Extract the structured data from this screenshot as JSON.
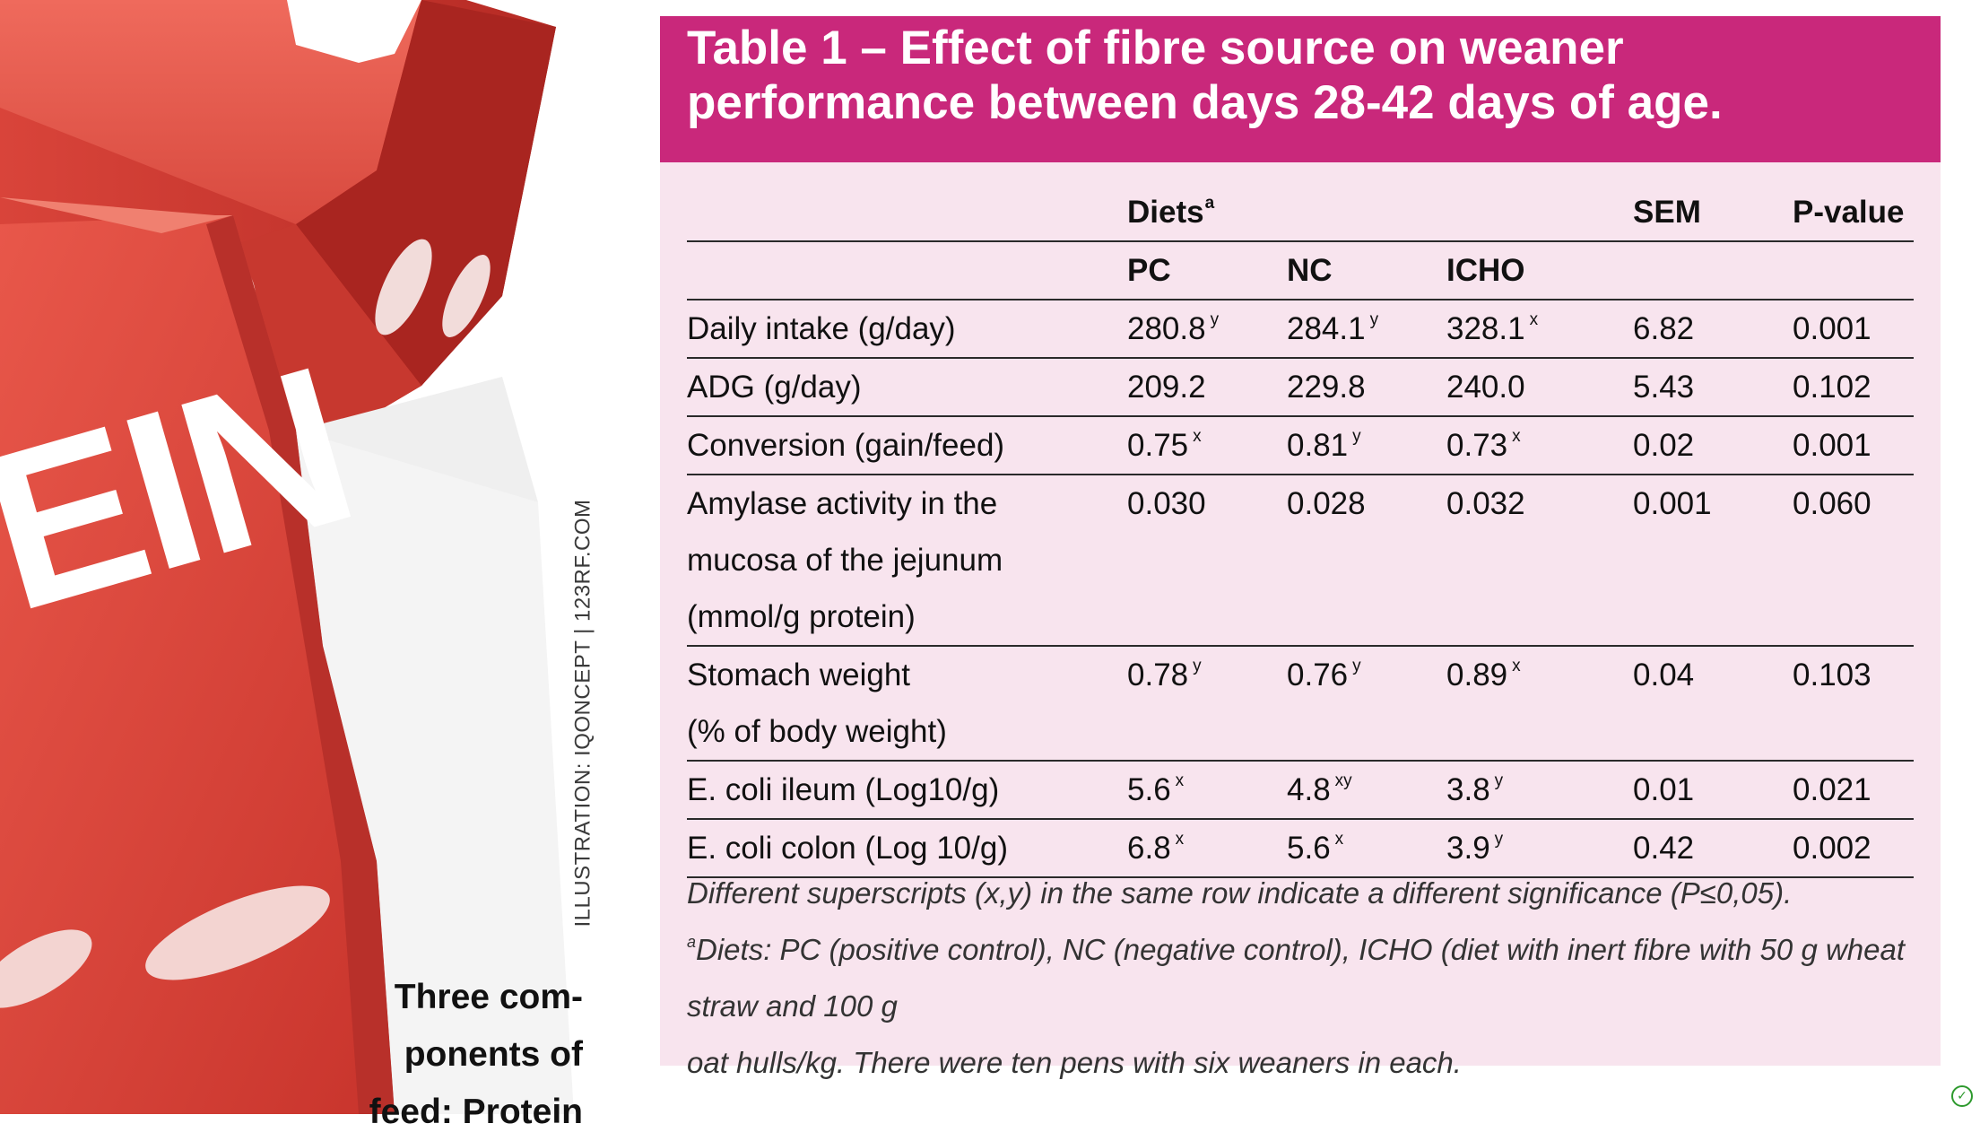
{
  "illustration": {
    "credit": "ILLUSTRATION: IQONCEPT | 123RF.COM",
    "dice_lettering": "EIN"
  },
  "caption": {
    "lines": [
      "Three com-",
      "ponents of",
      "feed: Protein"
    ]
  },
  "table": {
    "title_lines": [
      "Table 1 – Effect of fibre source on weaner",
      "performance between days 28-42 days of age."
    ],
    "header": {
      "diets": "Diets",
      "diets_sup": "a",
      "sem": "SEM",
      "pvalue": "P-value",
      "pc": "PC",
      "nc": "NC",
      "icho": "ICHO"
    },
    "rows": [
      {
        "label": [
          "Daily intake (g/day)"
        ],
        "pc": "280.8",
        "pc_sup": "y",
        "nc": "284.1",
        "nc_sup": "y",
        "icho": "328.1",
        "icho_sup": "x",
        "sem": "6.82",
        "p": "0.001"
      },
      {
        "label": [
          "ADG (g/day)"
        ],
        "pc": "209.2",
        "pc_sup": "",
        "nc": "229.8",
        "nc_sup": "",
        "icho": "240.0",
        "icho_sup": "",
        "sem": "5.43",
        "p": "0.102"
      },
      {
        "label": [
          "Conversion (gain/feed)"
        ],
        "pc": "0.75",
        "pc_sup": "x",
        "nc": "0.81",
        "nc_sup": "y",
        "icho": "0.73",
        "icho_sup": "x",
        "sem": "0.02",
        "p": "0.001"
      },
      {
        "label": [
          "Amylase activity in the",
          "mucosa of the jejunum",
          "(mmol/g protein)"
        ],
        "pc": "0.030",
        "pc_sup": "",
        "nc": "0.028",
        "nc_sup": "",
        "icho": "0.032",
        "icho_sup": "",
        "sem": "0.001",
        "p": "0.060"
      },
      {
        "label": [
          "Stomach weight",
          "(% of body weight)"
        ],
        "pc": "0.78",
        "pc_sup": "y",
        "nc": "0.76",
        "nc_sup": "y",
        "icho": "0.89",
        "icho_sup": "x",
        "sem": "0.04",
        "p": "0.103"
      },
      {
        "label": [
          "E. coli ileum (Log10/g)"
        ],
        "pc": "5.6",
        "pc_sup": "x",
        "nc": "4.8",
        "nc_sup": "xy",
        "icho": "3.8",
        "icho_sup": "y",
        "sem": "0.01",
        "p": "0.021"
      },
      {
        "label": [
          "E. coli colon (Log 10/g)"
        ],
        "pc": "6.8",
        "pc_sup": "x",
        "nc": "5.6",
        "nc_sup": "x",
        "icho": "3.9",
        "icho_sup": "y",
        "sem": "0.42",
        "p": "0.002"
      }
    ],
    "notes": {
      "significance": "Different superscripts (x,y) in the same row indicate a different significance (P≤0,05).",
      "diets_sup": "a",
      "diets_line1": "Diets: PC (positive control), NC (negative control), ICHO (diet with inert fibre with 50 g wheat straw and 100 g",
      "diets_line2": "oat hulls/kg. There were ten pens with six weaners in each."
    }
  },
  "colors": {
    "title_bar": "#c9287b",
    "panel_background": "#f8e4ee",
    "dice_red": "#e0443a"
  }
}
